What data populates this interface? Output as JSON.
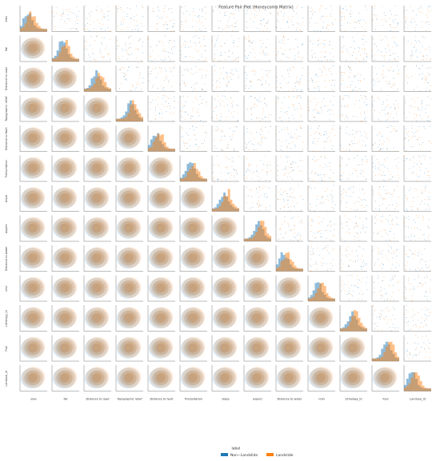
{
  "chart_data": {
    "type": "pairplot",
    "title": "Feature Pair Plot (Honeycomb Matrix)",
    "variables": [
      "elev",
      "fwi",
      "Distance to road",
      "Topographic relief",
      "Distance to fault",
      "Precipitation",
      "slope",
      "aspect",
      "Distance to water",
      "ndvi",
      "Lithology_id",
      "Fsoi",
      "Landuse_id"
    ],
    "legend_title": "label",
    "series": [
      {
        "name": "Non−Landslide",
        "color": "#1f77b4"
      },
      {
        "name": "Landslide",
        "color": "#ff7f0e"
      }
    ]
  }
}
